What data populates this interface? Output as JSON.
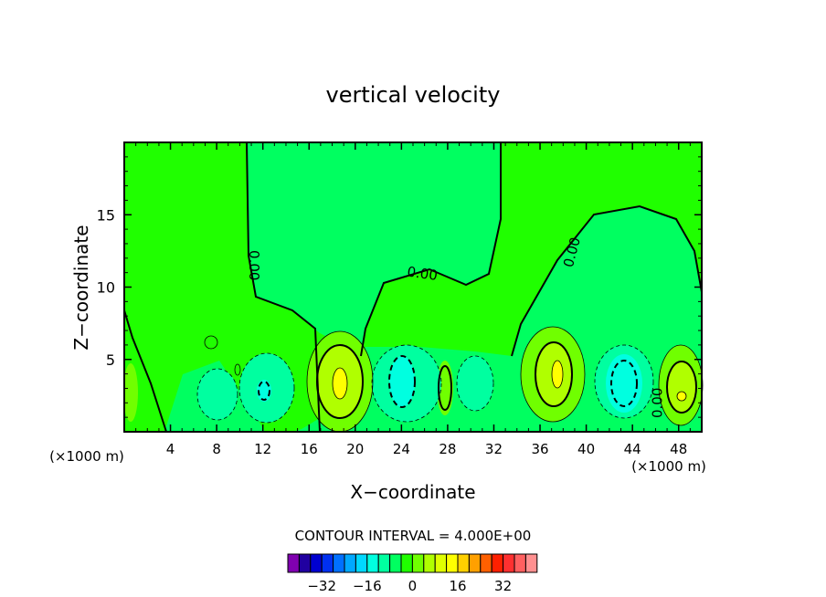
{
  "chart_data": {
    "type": "contour",
    "title": "vertical velocity",
    "xlabel": "X−coordinate",
    "ylabel": "Z−coordinate",
    "x_unit_left": "(×1000 m)",
    "x_unit_right": "(×1000 m)",
    "xlim": [
      0,
      50
    ],
    "ylim": [
      0,
      20
    ],
    "x_ticks": [
      4,
      8,
      12,
      16,
      20,
      24,
      28,
      32,
      36,
      40,
      44,
      48
    ],
    "y_ticks": [
      5,
      10,
      15
    ],
    "contour_labels": [
      {
        "text": "0.00",
        "x": 11.2,
        "y": 11.5,
        "angle": 90
      },
      {
        "text": "0.00",
        "x": 25.8,
        "y": 10.9,
        "angle": 8
      },
      {
        "text": "0.00",
        "x": 38.8,
        "y": 12.4,
        "angle": -75
      },
      {
        "text": "0.00",
        "x": 46.2,
        "y": 2.0,
        "angle": -90
      }
    ],
    "contour_interval_text": "CONTOUR INTERVAL = 4.000E+00",
    "colorbar": {
      "colors": [
        "#8000b0",
        "#2000a0",
        "#0000d0",
        "#0030f0",
        "#0070ff",
        "#00a8ff",
        "#00d8ff",
        "#00ffe0",
        "#00ffa0",
        "#00ff60",
        "#20ff00",
        "#70ff00",
        "#b0ff00",
        "#e0ff00",
        "#ffff00",
        "#ffd000",
        "#ffa000",
        "#ff6000",
        "#ff2000",
        "#ff3030",
        "#ff6060",
        "#ff9090"
      ],
      "tick_labels": [
        "−32",
        "−16",
        "0",
        "16",
        "32"
      ],
      "tick_values": [
        -32,
        -16,
        0,
        16,
        32
      ],
      "range": [
        -44,
        44
      ]
    }
  }
}
